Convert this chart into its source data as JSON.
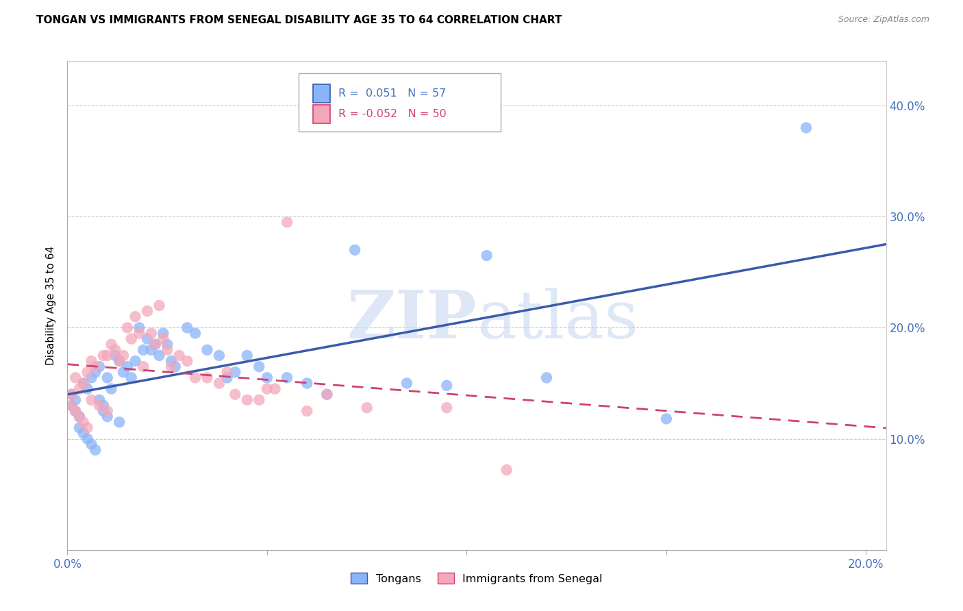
{
  "title": "TONGAN VS IMMIGRANTS FROM SENEGAL DISABILITY AGE 35 TO 64 CORRELATION CHART",
  "source": "Source: ZipAtlas.com",
  "ylabel": "Disability Age 35 to 64",
  "xlim": [
    0.0,
    0.205
  ],
  "ylim": [
    0.0,
    0.44
  ],
  "xticks": [
    0.0,
    0.05,
    0.1,
    0.15,
    0.2
  ],
  "xtick_labels": [
    "0.0%",
    "",
    "",
    "",
    "20.0%"
  ],
  "ytick_vals": [
    0.1,
    0.2,
    0.3,
    0.4
  ],
  "ytick_labels_right": [
    "10.0%",
    "20.0%",
    "30.0%",
    "40.0%"
  ],
  "R_tongan": 0.051,
  "N_tongan": 57,
  "R_senegal": -0.052,
  "N_senegal": 50,
  "tongan_color": "#8ab4f8",
  "senegal_color": "#f4a7b9",
  "line_tongan_color": "#3a5bab",
  "line_senegal_color": "#d04070",
  "watermark_zip": "ZIP",
  "watermark_atlas": "atlas",
  "legend_labels": [
    "Tongans",
    "Immigrants from Senegal"
  ],
  "tongan_x": [
    0.001,
    0.001,
    0.002,
    0.002,
    0.003,
    0.003,
    0.004,
    0.004,
    0.005,
    0.005,
    0.006,
    0.006,
    0.007,
    0.007,
    0.008,
    0.008,
    0.009,
    0.009,
    0.01,
    0.01,
    0.011,
    0.012,
    0.013,
    0.013,
    0.014,
    0.015,
    0.016,
    0.017,
    0.018,
    0.019,
    0.02,
    0.021,
    0.022,
    0.023,
    0.024,
    0.025,
    0.026,
    0.027,
    0.03,
    0.032,
    0.035,
    0.038,
    0.04,
    0.042,
    0.045,
    0.048,
    0.05,
    0.055,
    0.06,
    0.065,
    0.072,
    0.085,
    0.095,
    0.105,
    0.12,
    0.15,
    0.185
  ],
  "tongan_y": [
    0.14,
    0.13,
    0.135,
    0.125,
    0.12,
    0.11,
    0.15,
    0.105,
    0.145,
    0.1,
    0.155,
    0.095,
    0.16,
    0.09,
    0.165,
    0.135,
    0.13,
    0.125,
    0.155,
    0.12,
    0.145,
    0.175,
    0.17,
    0.115,
    0.16,
    0.165,
    0.155,
    0.17,
    0.2,
    0.18,
    0.19,
    0.18,
    0.185,
    0.175,
    0.195,
    0.185,
    0.17,
    0.165,
    0.2,
    0.195,
    0.18,
    0.175,
    0.155,
    0.16,
    0.175,
    0.165,
    0.155,
    0.155,
    0.15,
    0.14,
    0.27,
    0.15,
    0.148,
    0.265,
    0.155,
    0.118,
    0.38
  ],
  "senegal_x": [
    0.001,
    0.001,
    0.002,
    0.002,
    0.003,
    0.003,
    0.004,
    0.004,
    0.005,
    0.005,
    0.006,
    0.006,
    0.007,
    0.008,
    0.009,
    0.01,
    0.01,
    0.011,
    0.012,
    0.013,
    0.014,
    0.015,
    0.016,
    0.017,
    0.018,
    0.019,
    0.02,
    0.021,
    0.022,
    0.023,
    0.024,
    0.025,
    0.026,
    0.028,
    0.03,
    0.032,
    0.035,
    0.038,
    0.04,
    0.042,
    0.045,
    0.048,
    0.05,
    0.052,
    0.055,
    0.06,
    0.065,
    0.075,
    0.095,
    0.11
  ],
  "senegal_y": [
    0.14,
    0.13,
    0.155,
    0.125,
    0.145,
    0.12,
    0.15,
    0.115,
    0.16,
    0.11,
    0.17,
    0.135,
    0.165,
    0.13,
    0.175,
    0.175,
    0.125,
    0.185,
    0.18,
    0.17,
    0.175,
    0.2,
    0.19,
    0.21,
    0.195,
    0.165,
    0.215,
    0.195,
    0.185,
    0.22,
    0.19,
    0.18,
    0.165,
    0.175,
    0.17,
    0.155,
    0.155,
    0.15,
    0.16,
    0.14,
    0.135,
    0.135,
    0.145,
    0.145,
    0.295,
    0.125,
    0.14,
    0.128,
    0.128,
    0.072
  ]
}
